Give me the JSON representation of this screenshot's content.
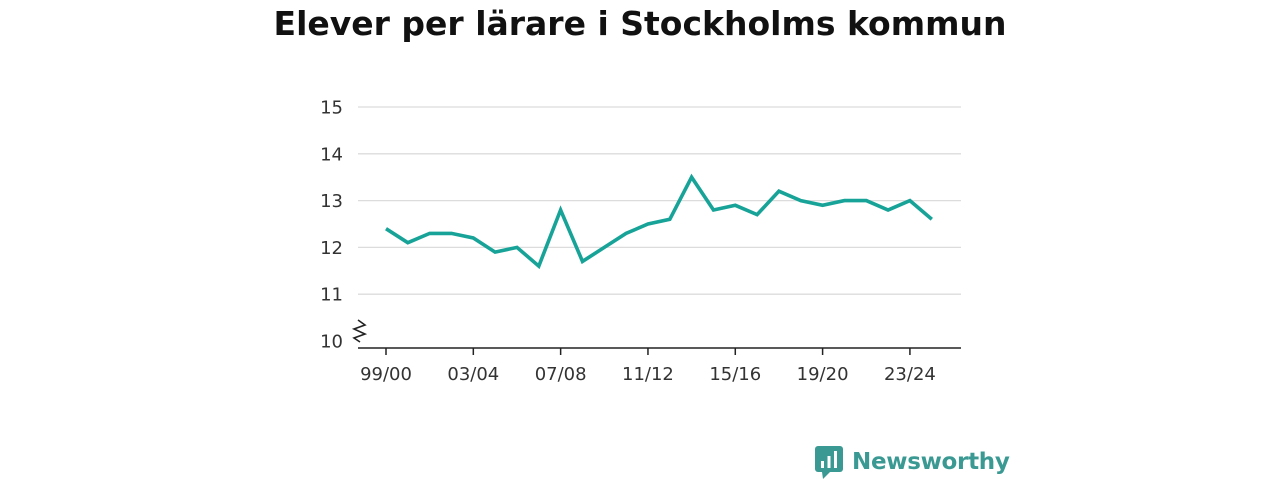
{
  "chart_data": {
    "type": "line",
    "title": "Elever per lärare i Stockholms kommun",
    "xlabel": "",
    "ylabel": "",
    "x": [
      "99/00",
      "00/01",
      "01/02",
      "02/03",
      "03/04",
      "04/05",
      "05/06",
      "06/07",
      "07/08",
      "08/09",
      "09/10",
      "10/11",
      "11/12",
      "12/13",
      "13/14",
      "14/15",
      "15/16",
      "16/17",
      "17/18",
      "18/19",
      "19/20",
      "20/21",
      "21/22",
      "22/23",
      "23/24",
      "24/25"
    ],
    "x_tick_labels": [
      "99/00",
      "03/04",
      "07/08",
      "11/12",
      "15/16",
      "19/20",
      "23/24"
    ],
    "series": [
      {
        "values": [
          12.4,
          12.1,
          12.3,
          12.3,
          12.2,
          11.9,
          12.0,
          11.6,
          12.8,
          11.7,
          12.0,
          12.3,
          12.5,
          12.6,
          13.5,
          12.8,
          12.9,
          12.7,
          13.2,
          13.0,
          12.9,
          13.0,
          13.0,
          12.8,
          13.0,
          12.6
        ],
        "color": "#17a398"
      }
    ],
    "y_ticks": [
      10,
      11,
      12,
      13,
      14,
      15
    ],
    "ylim": [
      10,
      15
    ],
    "axis_break": true,
    "grid": true,
    "legend": "none"
  },
  "branding": {
    "name": "Newsworthy",
    "icon": "newsworthy-logo-icon",
    "color": "#3a9a93"
  }
}
